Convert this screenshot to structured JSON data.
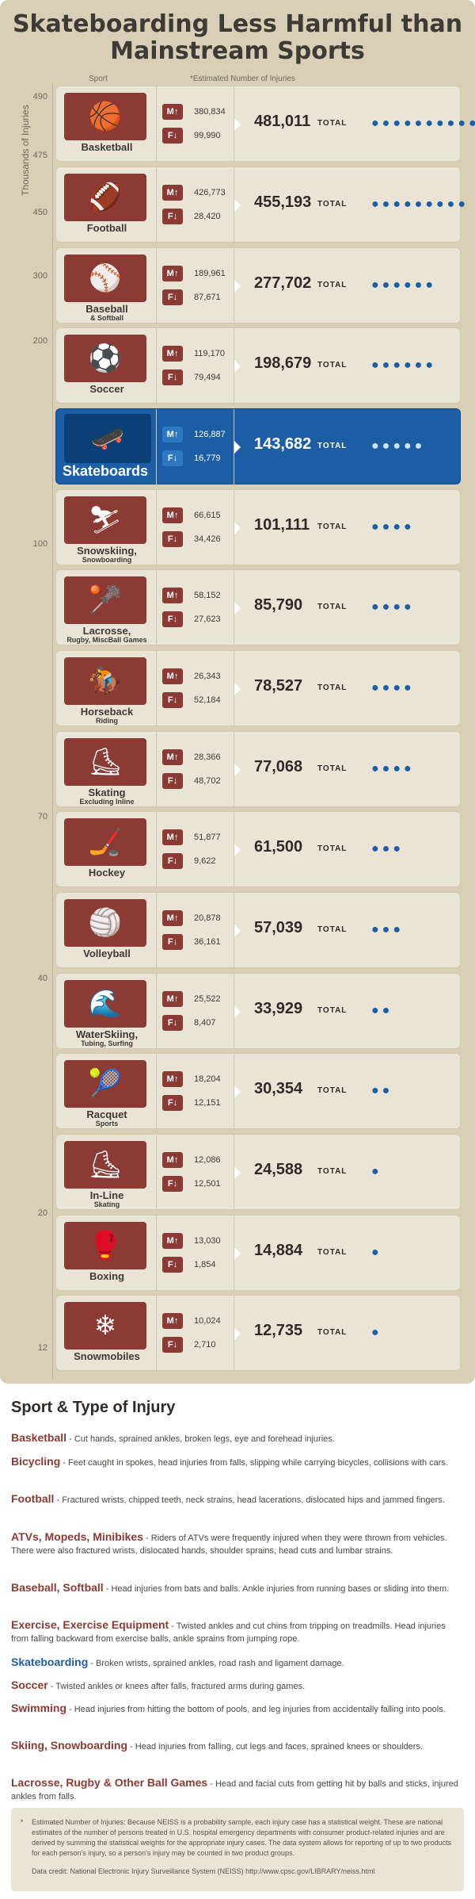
{
  "title": "Skateboarding Less Harmful than Mainstream Sports",
  "header": {
    "sport": "Sport",
    "estimate": "*Estimated Number of Injuries"
  },
  "axis": {
    "label": "Thousands of Injuries",
    "ticks": [
      "490",
      "475",
      "450",
      "300",
      "200",
      "100",
      "70",
      "40",
      "20",
      "12"
    ]
  },
  "total_label": "TOTAL",
  "male_marker": "M↑",
  "female_marker": "F↓",
  "rows": [
    {
      "name": "Basketball",
      "sub": "",
      "male": "380,834",
      "female": "99,990",
      "total": "481,011",
      "dots": "●●●●●●●●●●",
      "icon": "🏀"
    },
    {
      "name": "Football",
      "sub": "",
      "male": "426,773",
      "female": "28,420",
      "total": "455,193",
      "dots": "●●●●●●●●●",
      "icon": "🏈"
    },
    {
      "name": "Baseball",
      "sub": "& Softball",
      "male": "189,961",
      "female": "87,671",
      "total": "277,702",
      "dots": "●●●●●●",
      "icon": "⚾"
    },
    {
      "name": "Soccer",
      "sub": "",
      "male": "119,170",
      "female": "79,494",
      "total": "198,679",
      "dots": "●●●●●●",
      "icon": "⚽"
    },
    {
      "name": "Skateboards",
      "sub": "",
      "male": "126,887",
      "female": "16,779",
      "total": "143,682",
      "dots": "●●●●●",
      "icon": "🛹"
    },
    {
      "name": "Snowskiing,",
      "sub": "Snowboarding",
      "male": "66,615",
      "female": "34,426",
      "total": "101,111",
      "dots": "●●●●",
      "icon": "⛷"
    },
    {
      "name": "Lacrosse,",
      "sub": "Rugby, MiscBall Games",
      "male": "58,152",
      "female": "27,623",
      "total": "85,790",
      "dots": "●●●●",
      "icon": "🥍"
    },
    {
      "name": "Horseback",
      "sub": "Riding",
      "male": "26,343",
      "female": "52,184",
      "total": "78,527",
      "dots": "●●●●",
      "icon": "🏇"
    },
    {
      "name": "Skating",
      "sub": "Excluding Inline",
      "male": "28,366",
      "female": "48,702",
      "total": "77,068",
      "dots": "●●●●",
      "icon": "⛸"
    },
    {
      "name": "Hockey",
      "sub": "",
      "male": "51,877",
      "female": "9,622",
      "total": "61,500",
      "dots": "●●●",
      "icon": "🏒"
    },
    {
      "name": "Volleyball",
      "sub": "",
      "male": "20,878",
      "female": "36,161",
      "total": "57,039",
      "dots": "●●●",
      "icon": "🏐"
    },
    {
      "name": "WaterSkiing,",
      "sub": "Tubing, Surfing",
      "male": "25,522",
      "female": "8,407",
      "total": "33,929",
      "dots": "●●",
      "icon": "🌊"
    },
    {
      "name": "Racquet",
      "sub": "Sports",
      "male": "18,204",
      "female": "12,151",
      "total": "30,354",
      "dots": "●●",
      "icon": "🎾"
    },
    {
      "name": "In-Line",
      "sub": "Skating",
      "male": "12,086",
      "female": "12,501",
      "total": "24,588",
      "dots": "●",
      "icon": "⛸"
    },
    {
      "name": "Boxing",
      "sub": "",
      "male": "13,030",
      "female": "1,854",
      "total": "14,884",
      "dots": "●",
      "icon": "🥊"
    },
    {
      "name": "Snowmobiles",
      "sub": "",
      "male": "10,024",
      "female": "2,710",
      "total": "12,735",
      "dots": "●",
      "icon": "❄"
    }
  ],
  "injury_section": {
    "title": "Sport & Type of Injury",
    "items": [
      {
        "sport": "Basketball",
        "text": " - Cut hands, sprained ankles, broken legs, eye and forehead injuries."
      },
      {
        "sport": "Bicycling",
        "text": " - Feet caught in spokes, head injuries from falls, slipping while carrying bicycles, collisions with cars."
      },
      {
        "sport": "Football",
        "text": " - Fractured wrists, chipped teeth, neck strains, head lacerations, dislocated hips and jammed fingers."
      },
      {
        "sport": "ATVs, Mopeds, Minibikes",
        "text": " - Riders of ATVs were frequently injured when they were thrown from vehicles. There were also fractured wrists, dislocated hands, shoulder sprains, head cuts and lumbar strains."
      },
      {
        "sport": "Baseball, Softball",
        "text": " - Head injuries from bats and balls. Ankle injuries from running bases or sliding into them."
      },
      {
        "sport": "Exercise, Exercise Equipment",
        "text": " - Twisted ankles and cut chins from tripping on treadmills. Head injuries from falling backward from exercise balls, ankle sprains from jumping rope."
      },
      {
        "sport": "Skateboarding",
        "text": " - Broken wrists, sprained ankles, road rash and ligament damage."
      },
      {
        "sport": "Soccer",
        "text": " - Twisted ankles or knees after falls, fractured arms during games."
      },
      {
        "sport": "Swimming",
        "text": " - Head injuries from hitting the bottom of pools, and leg injuries from accidentally falling into pools."
      },
      {
        "sport": "Skiing, Snowboarding",
        "text": " - Head injuries from falling, cut legs and faces, sprained knees or shoulders."
      },
      {
        "sport": "Lacrosse, Rugby & Other Ball Games",
        "text": " - Head and facial cuts from getting hit by balls and sticks, injured ankles from falls."
      }
    ]
  },
  "note": {
    "star": "*",
    "text": "Estimated Number of Injuries: Because NEISS is a probability sample, each injury case has a statistical weight. These are national estimates of the number of persons treated in U.S. hospital emergency departments with consumer product-related injuries and are derived by summing the statistical weights for the appropriate injury cases. The data system allows for reporting of up to two products for each person's injury, so a person's injury may be counted in two product groups.",
    "credit": "Data credit: National Electronic Injury Surveillance System (NEISS) http://www.cpsc.gov/LIBRARY/neiss.html"
  },
  "colors": {
    "panel": "#d9cfb6",
    "icon": "#8c3b34",
    "highlight": "#1c5ea6"
  }
}
